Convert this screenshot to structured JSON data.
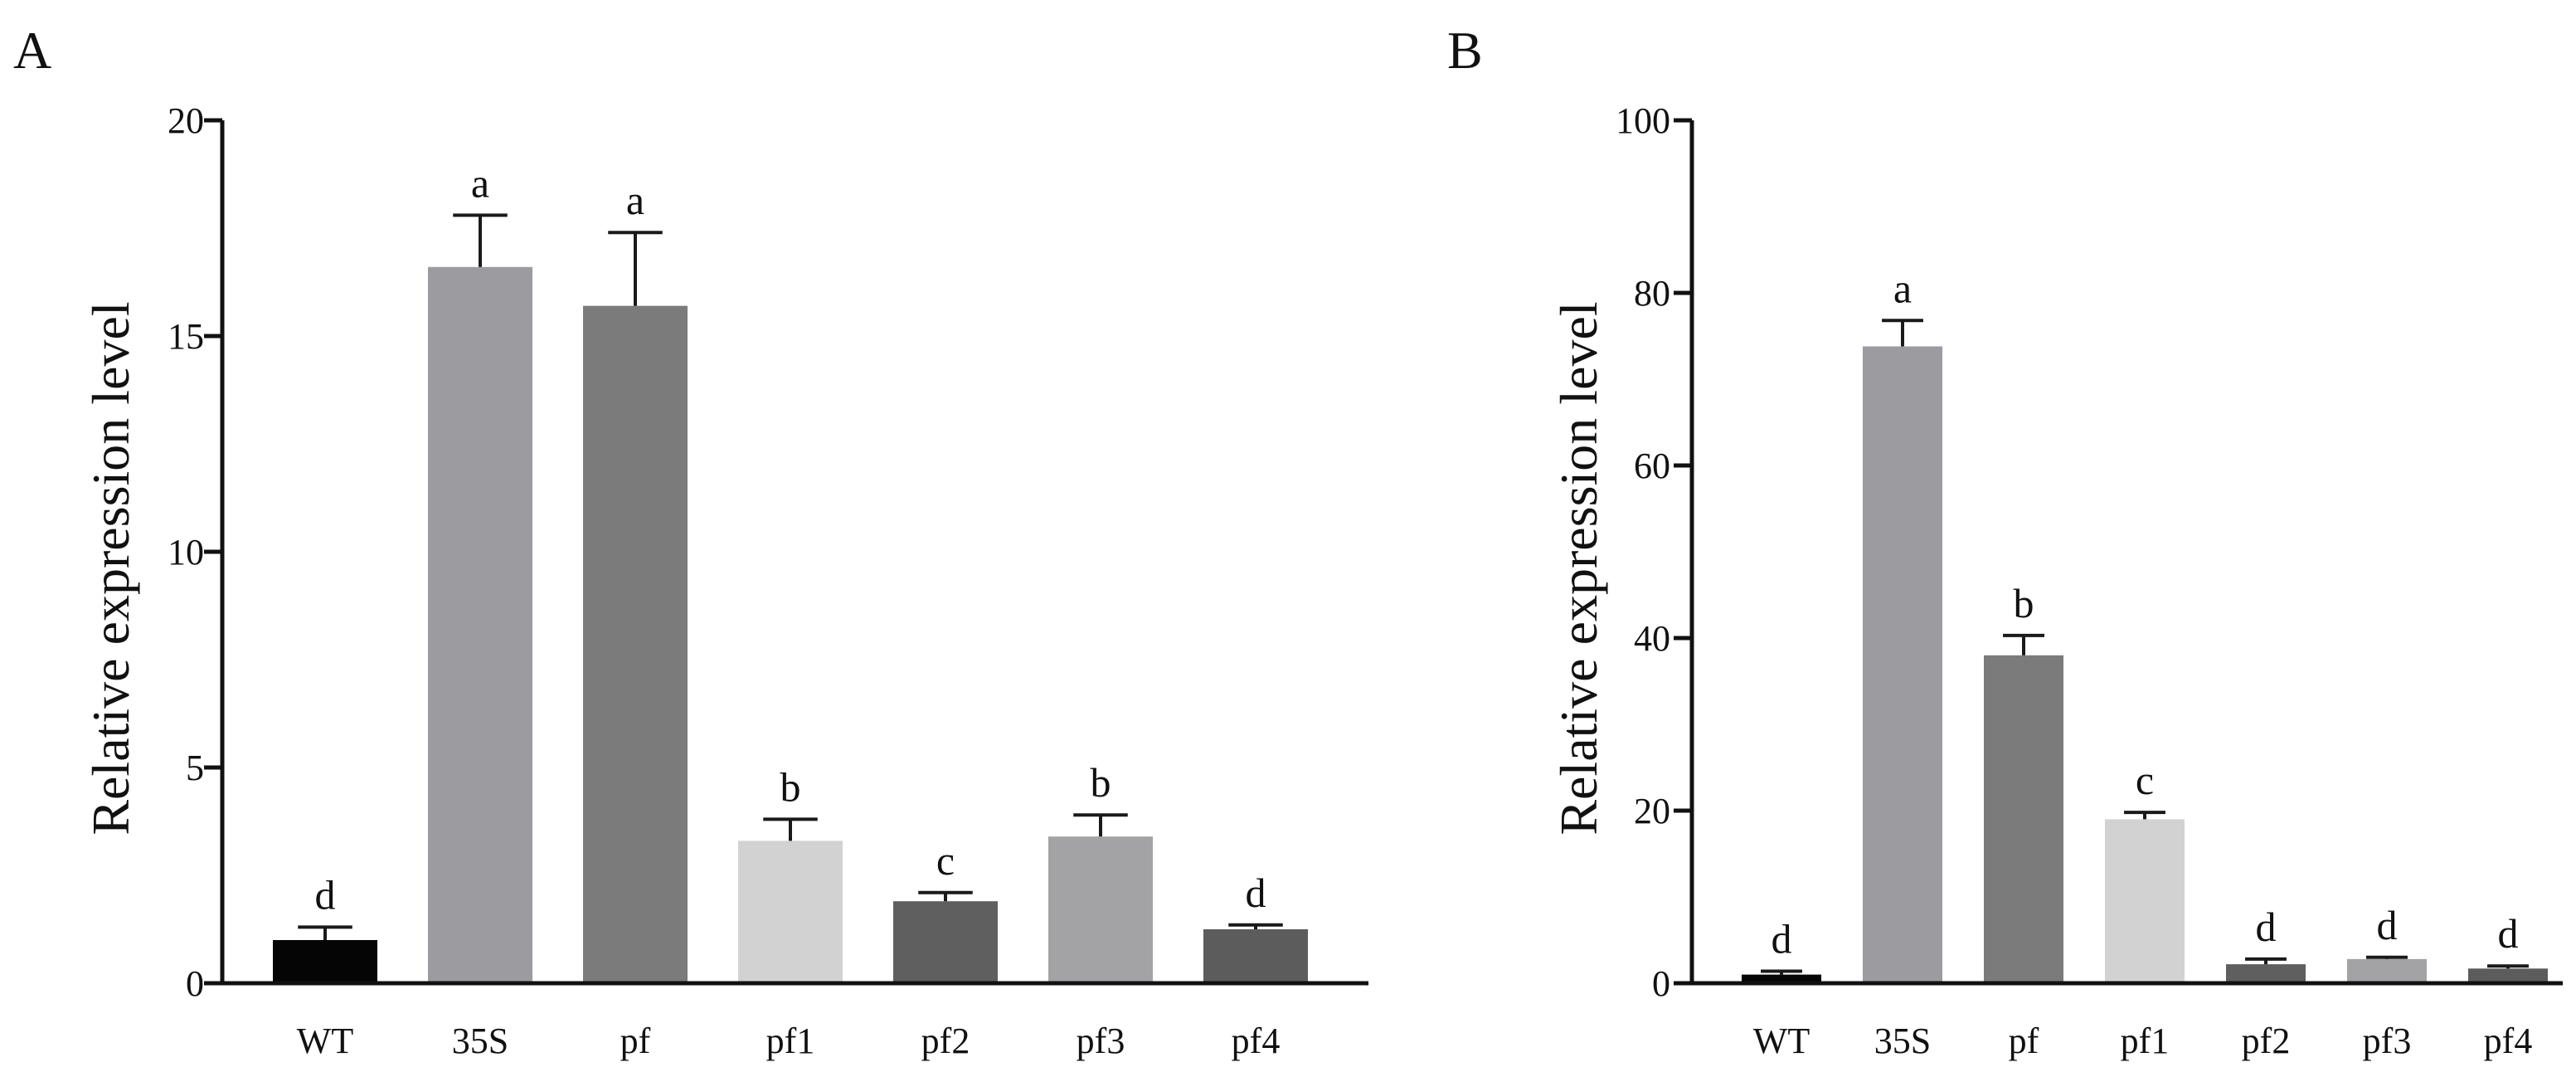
{
  "chart_data": [
    {
      "type": "bar",
      "panel": "A",
      "ylabel": "Relative expression level",
      "xlabel": "",
      "ylim": [
        0,
        20
      ],
      "yticks": [
        0,
        5,
        10,
        15,
        20
      ],
      "categories": [
        "WT",
        "35S",
        "pf",
        "pf1",
        "pf2",
        "pf3",
        "pf4"
      ],
      "values": [
        1.0,
        16.6,
        15.7,
        3.3,
        1.9,
        3.4,
        1.25
      ],
      "errors": [
        0.3,
        1.2,
        1.7,
        0.5,
        0.2,
        0.5,
        0.1
      ],
      "significance": [
        "d",
        "a",
        "a",
        "b",
        "c",
        "b",
        "d"
      ],
      "colors": [
        "#050505",
        "#9c9ca0",
        "#7b7b7b",
        "#d2d2d2",
        "#5f5f5f",
        "#a3a3a6",
        "#5c5c5c"
      ]
    },
    {
      "type": "bar",
      "panel": "B",
      "ylabel": "Relative expression level",
      "xlabel": "",
      "ylim": [
        0,
        100
      ],
      "yticks": [
        0,
        20,
        40,
        60,
        80,
        100
      ],
      "categories": [
        "WT",
        "35S",
        "pf",
        "pf1",
        "pf2",
        "pf3",
        "pf4"
      ],
      "values": [
        1.0,
        73.8,
        38.0,
        19.0,
        2.2,
        2.8,
        1.7
      ],
      "errors": [
        0.4,
        3.0,
        2.3,
        0.8,
        0.6,
        0.2,
        0.3
      ],
      "significance": [
        "d",
        "a",
        "b",
        "c",
        "d",
        "d",
        "d"
      ],
      "colors": [
        "#050505",
        "#9c9ca0",
        "#7b7b7b",
        "#d2d2d2",
        "#5f5f5f",
        "#a3a3a6",
        "#5c5c5c"
      ]
    }
  ]
}
